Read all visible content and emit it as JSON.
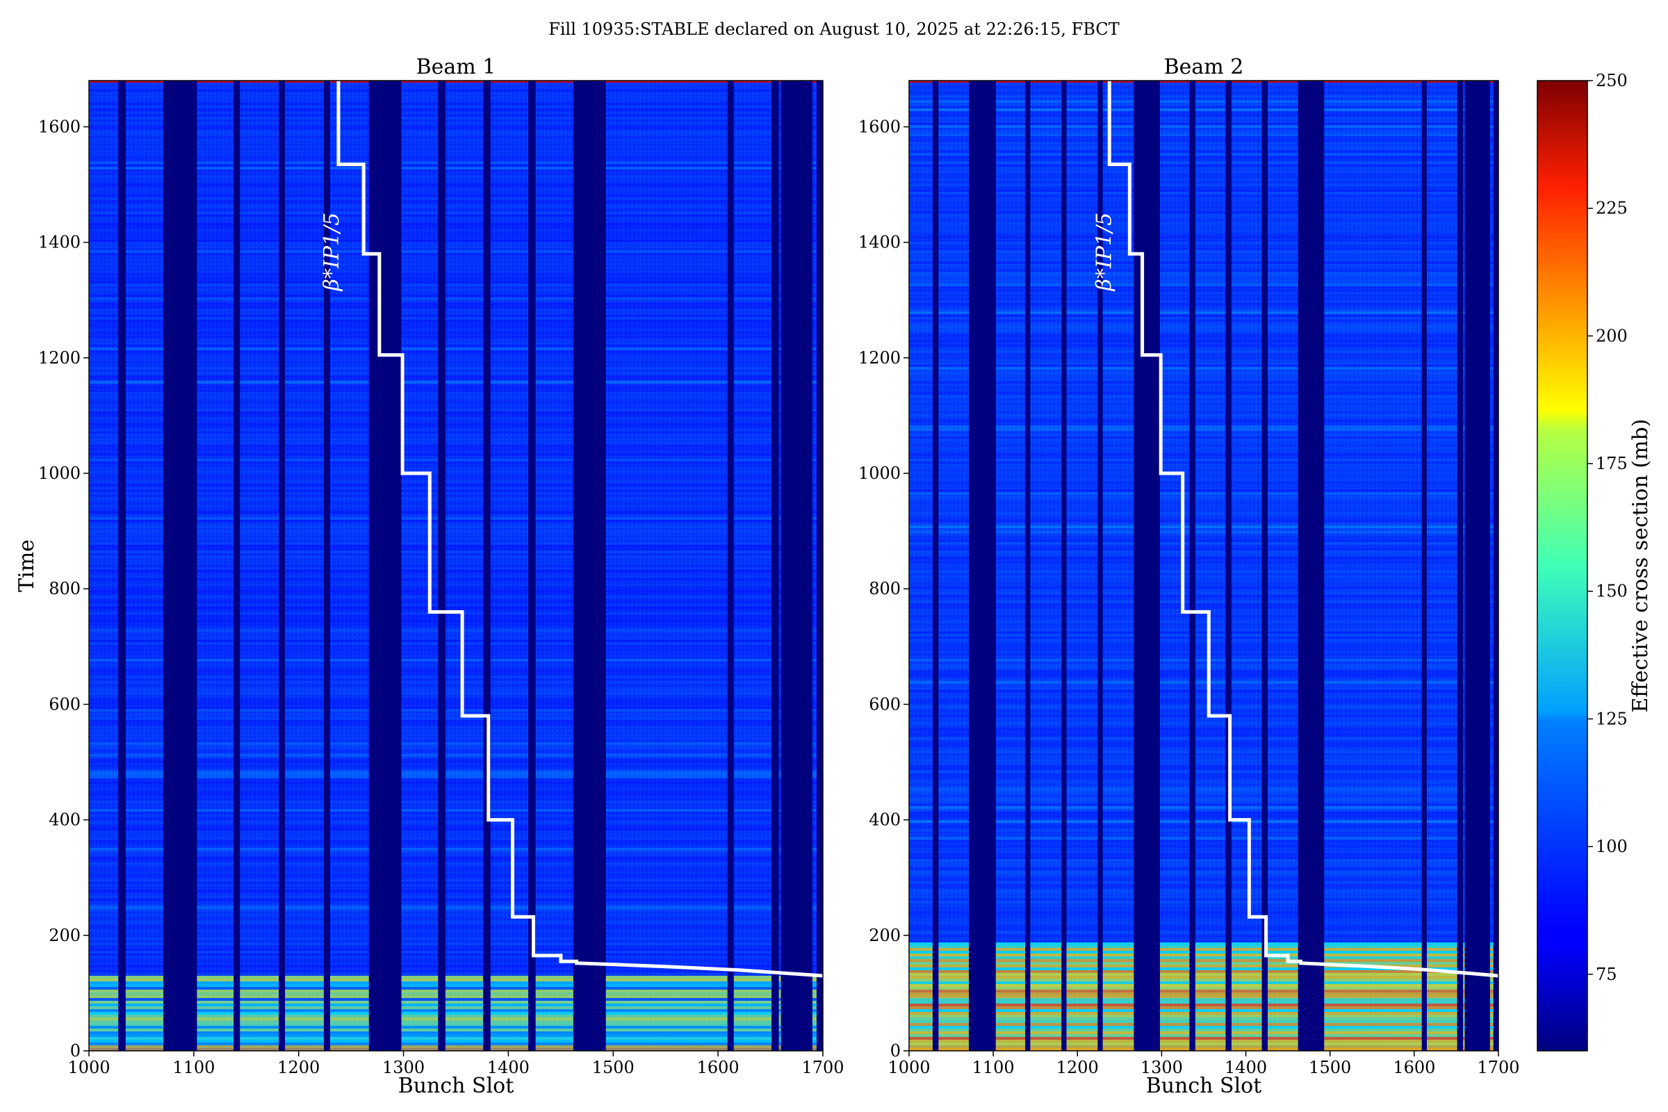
{
  "suptitle": "Fill 10935:STABLE declared on August 10, 2025 at 22:26:15, FBCT",
  "chart_data": {
    "type": "heatmap",
    "colormap": "jet",
    "colorbar": {
      "label": "Effective cross section (mb)",
      "range": [
        60,
        250
      ],
      "ticks": [
        75,
        100,
        125,
        150,
        175,
        200,
        225,
        250
      ]
    },
    "xlim": [
      1000,
      1700
    ],
    "ylim": [
      0,
      1680
    ],
    "xticks": [
      1000,
      1100,
      1200,
      1300,
      1400,
      1500,
      1600,
      1700
    ],
    "yticks": [
      0,
      200,
      400,
      600,
      800,
      1000,
      1200,
      1400,
      1600
    ],
    "empty_slot_ranges": [
      [
        1028,
        1035
      ],
      [
        1071,
        1103
      ],
      [
        1138,
        1144
      ],
      [
        1181,
        1187
      ],
      [
        1224,
        1230
      ],
      [
        1267,
        1298
      ],
      [
        1333,
        1340
      ],
      [
        1376,
        1383
      ],
      [
        1419,
        1426
      ],
      [
        1462,
        1493
      ],
      [
        1651,
        1658
      ],
      [
        1694,
        1700
      ]
    ],
    "panels": [
      {
        "title": "Beam 1",
        "xlabel": "Bunch Slot",
        "ylabel": "Time",
        "background_level": 92,
        "extra_gaps": [
          [
            1609,
            1615
          ],
          [
            1660,
            1690
          ]
        ],
        "high_band_max_time": 130,
        "high_band_level": 128,
        "beta_label": "β*IP1/5",
        "beta_line": [
          [
            1238,
            1680
          ],
          [
            1238,
            1535
          ],
          [
            1262,
            1535
          ],
          [
            1262,
            1380
          ],
          [
            1277,
            1380
          ],
          [
            1277,
            1205
          ],
          [
            1299,
            1205
          ],
          [
            1299,
            1000
          ],
          [
            1325,
            1000
          ],
          [
            1325,
            760
          ],
          [
            1356,
            760
          ],
          [
            1356,
            580
          ],
          [
            1381,
            580
          ],
          [
            1381,
            400
          ],
          [
            1404,
            400
          ],
          [
            1404,
            232
          ],
          [
            1424,
            232
          ],
          [
            1424,
            165
          ],
          [
            1450,
            165
          ],
          [
            1450,
            155
          ],
          [
            1465,
            155
          ],
          [
            1465,
            152
          ],
          [
            1550,
            146
          ],
          [
            1620,
            140
          ],
          [
            1700,
            130
          ]
        ]
      },
      {
        "title": "Beam 2",
        "xlabel": "Bunch Slot",
        "ylabel": "",
        "background_level": 94,
        "extra_gaps": [
          [
            1609,
            1615
          ],
          [
            1660,
            1690
          ]
        ],
        "high_band_max_time": 190,
        "high_band_level": 160,
        "beta_label": "β*IP1/5",
        "beta_line": [
          [
            1238,
            1680
          ],
          [
            1238,
            1535
          ],
          [
            1262,
            1535
          ],
          [
            1262,
            1380
          ],
          [
            1277,
            1380
          ],
          [
            1277,
            1205
          ],
          [
            1299,
            1205
          ],
          [
            1299,
            1000
          ],
          [
            1325,
            1000
          ],
          [
            1325,
            760
          ],
          [
            1356,
            760
          ],
          [
            1356,
            580
          ],
          [
            1381,
            580
          ],
          [
            1381,
            400
          ],
          [
            1404,
            400
          ],
          [
            1404,
            232
          ],
          [
            1424,
            232
          ],
          [
            1424,
            165
          ],
          [
            1450,
            165
          ],
          [
            1450,
            155
          ],
          [
            1465,
            155
          ],
          [
            1465,
            152
          ],
          [
            1550,
            146
          ],
          [
            1620,
            140
          ],
          [
            1700,
            130
          ]
        ]
      }
    ]
  }
}
